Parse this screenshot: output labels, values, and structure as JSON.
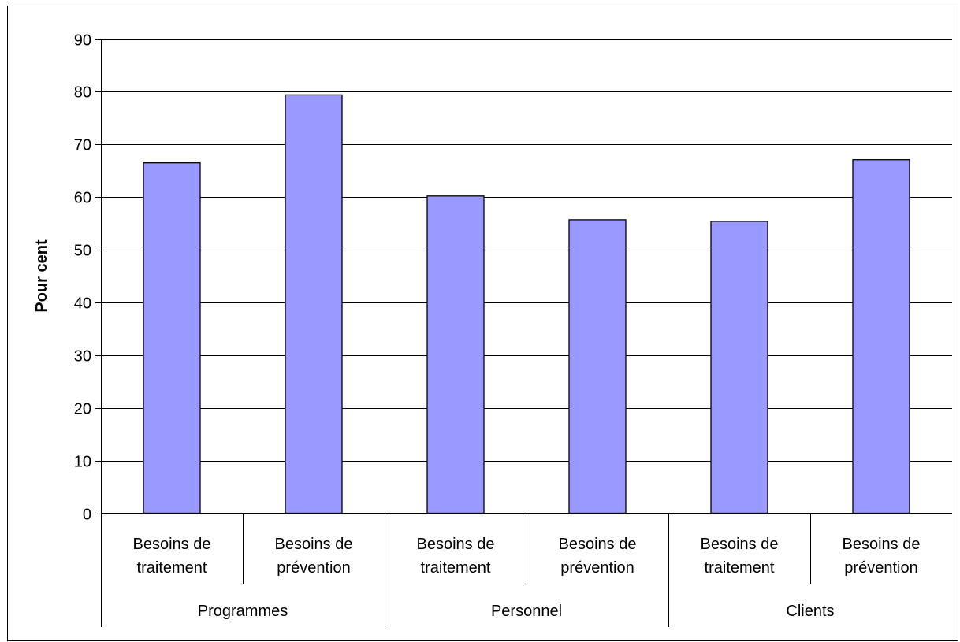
{
  "chart_data": {
    "type": "bar",
    "title": "",
    "xlabel": "",
    "ylabel": "Pour cent",
    "ylim": [
      0,
      90
    ],
    "yticks": [
      0,
      10,
      20,
      30,
      40,
      50,
      60,
      70,
      80,
      90
    ],
    "grid": true,
    "legend": "none",
    "bar_color": "#9999ff",
    "groups": [
      {
        "name": "Programmes",
        "categories": [
          [
            "Besoins de",
            "traitement"
          ],
          [
            "Besoins de",
            "prévention"
          ]
        ],
        "values": [
          66.5,
          79.4
        ]
      },
      {
        "name": "Personnel",
        "categories": [
          [
            "Besoins de",
            "traitement"
          ],
          [
            "Besoins de",
            "prévention"
          ]
        ],
        "values": [
          60.2,
          55.7
        ]
      },
      {
        "name": "Clients",
        "categories": [
          [
            "Besoins de",
            "traitement"
          ],
          [
            "Besoins de",
            "prévention"
          ]
        ],
        "values": [
          55.4,
          67.1
        ]
      }
    ]
  }
}
